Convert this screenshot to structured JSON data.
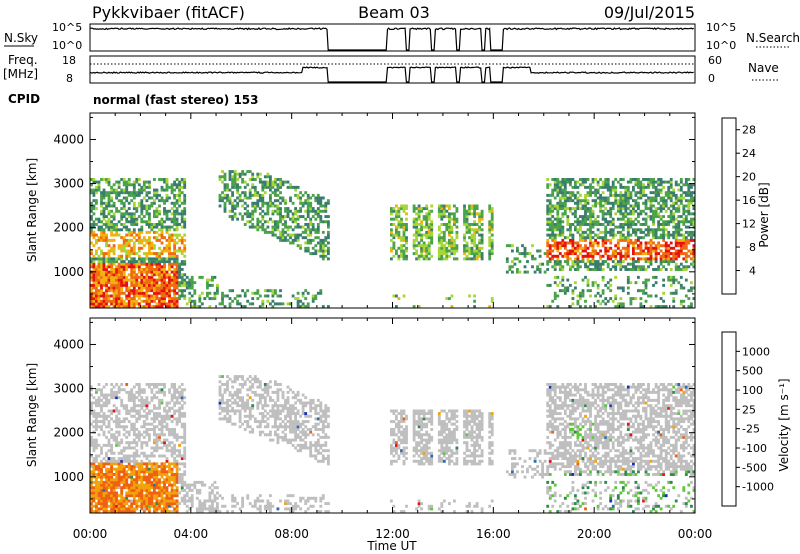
{
  "header": {
    "station": "Pykkvibaer (fitACF)",
    "beam": "Beam 03",
    "date": "09/Jul/2015"
  },
  "strips": {
    "nsky_label": "N.Sky",
    "nsky_ticks": [
      "10^5",
      "10^0"
    ],
    "nsky_right_ticks": [
      "10^5",
      "10^0"
    ],
    "nsearch_label": "N.Search",
    "freq_label": "Freq.",
    "freq_unit": "[MHz]",
    "freq_ticks": [
      "18",
      "8"
    ],
    "nave_ticks": [
      "60",
      "0"
    ],
    "nave_label": "Nave",
    "cpid_label": "CPID",
    "cpid_value": "normal (fast stereo) 153"
  },
  "colors": {
    "power_scale": [
      "#0018f0",
      "#1f4ea8",
      "#3a7d6e",
      "#4aa24a",
      "#a6d63a",
      "#f2b10d",
      "#ef6a10",
      "#e61010"
    ],
    "velocity_scale": [
      "#1830b8",
      "#2e6ab0",
      "#2e8a4c",
      "#5ec83a",
      "#bfbfbf",
      "#bfbfbf",
      "#f2a20d",
      "#ef6010",
      "#e61010"
    ]
  },
  "chart_data": [
    {
      "type": "heatmap",
      "name": "power-panel",
      "title": "",
      "xlabel": "Time UT",
      "ylabel": "Slant Range [km]",
      "xlim": [
        "00:00",
        "24:00"
      ],
      "x_ticks": [
        "00:00",
        "04:00",
        "08:00",
        "12:00",
        "16:00",
        "20:00",
        "00:00"
      ],
      "ylim": [
        180,
        4600
      ],
      "y_ticks": [
        "1000",
        "2000",
        "3000",
        "4000"
      ],
      "colorbar_label": "Power [dB]",
      "colorbar_ticks": [
        "4",
        "8",
        "12",
        "16",
        "20",
        "24",
        "28"
      ],
      "colorbar_range": [
        0,
        30
      ],
      "data_gaps_ut": [
        [
          9.4,
          11.8
        ],
        [
          15.9,
          16.4
        ]
      ]
    },
    {
      "type": "heatmap",
      "name": "velocity-panel",
      "title": "",
      "xlabel": "Time UT",
      "ylabel": "Slant Range [km]",
      "xlim": [
        "00:00",
        "24:00"
      ],
      "x_ticks": [
        "00:00",
        "04:00",
        "08:00",
        "12:00",
        "16:00",
        "20:00",
        "00:00"
      ],
      "ylim": [
        180,
        4600
      ],
      "y_ticks": [
        "1000",
        "2000",
        "3000",
        "4000"
      ],
      "colorbar_label": "Velocity [m s⁻¹]",
      "colorbar_ticks": [
        "1000",
        "500",
        "100",
        "25",
        "-25",
        "-100",
        "-500",
        "-1000"
      ],
      "data_gaps_ut": [
        [
          9.4,
          11.8
        ],
        [
          15.9,
          16.4
        ]
      ]
    }
  ]
}
